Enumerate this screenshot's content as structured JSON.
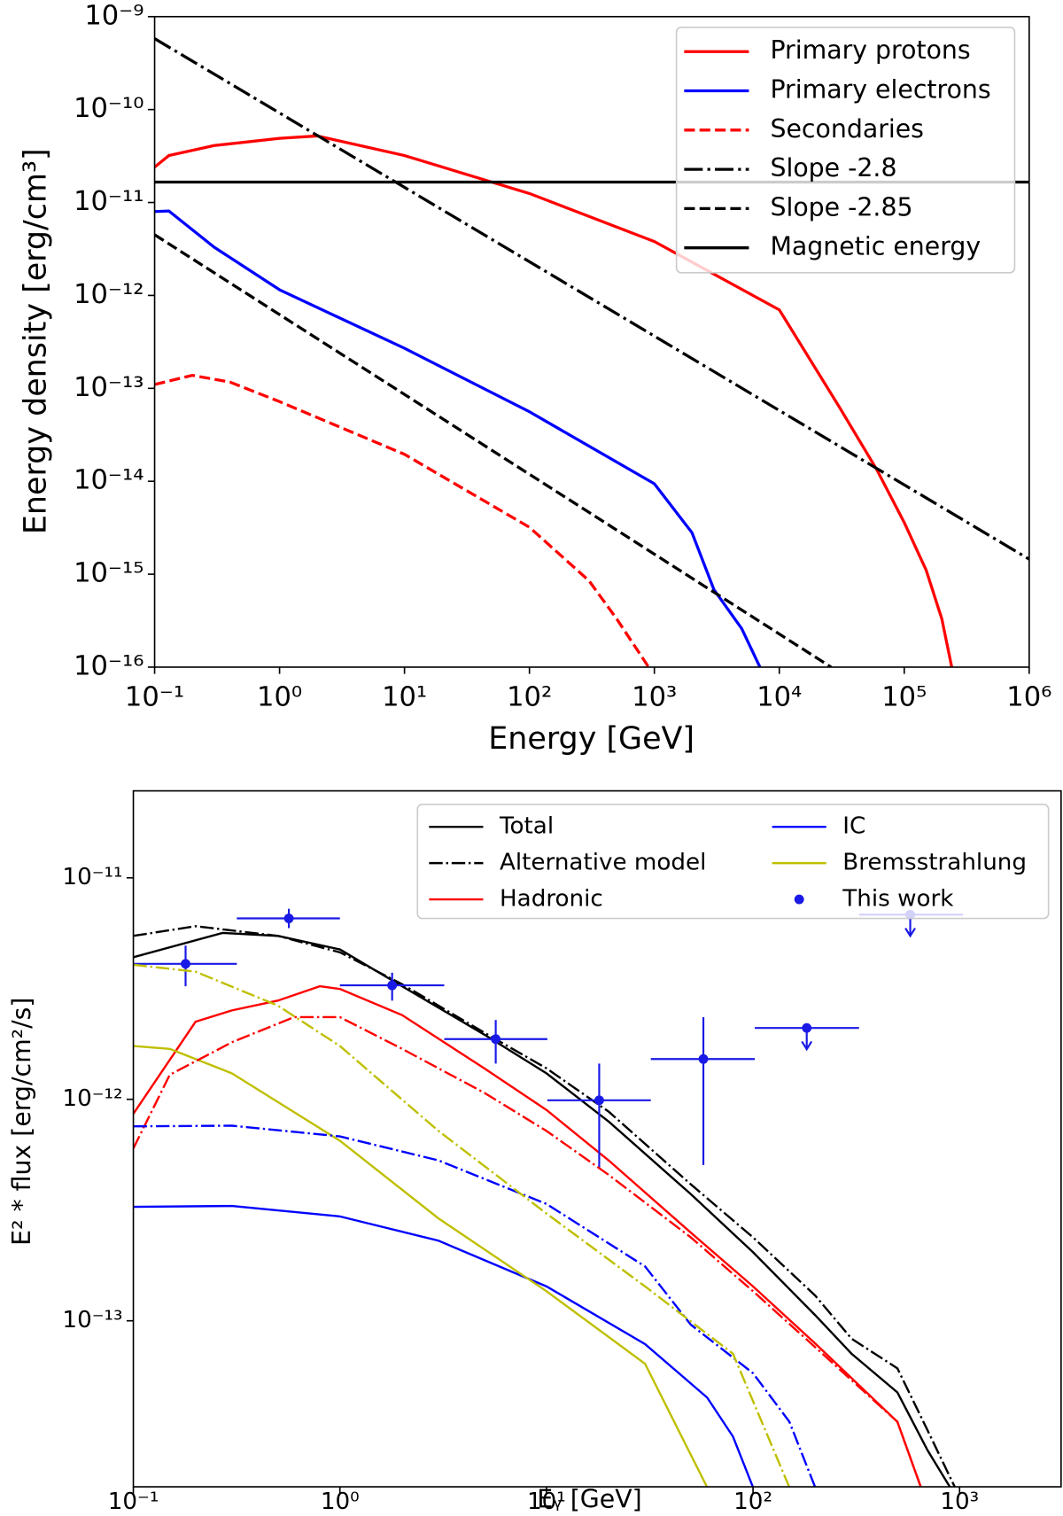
{
  "chart_data": [
    {
      "type": "line",
      "xlabel": "Energy [GeV]",
      "ylabel": "Energy density [erg/cm³]",
      "log_x": true,
      "log_y": true,
      "xlim": [
        0.1,
        1000000
      ],
      "ylim": [
        1e-16,
        1e-09
      ],
      "xticks": [
        {
          "value": 0.1,
          "label": "10⁻¹"
        },
        {
          "value": 1,
          "label": "10⁰"
        },
        {
          "value": 10,
          "label": "10¹"
        },
        {
          "value": 100,
          "label": "10²"
        },
        {
          "value": 1000,
          "label": "10³"
        },
        {
          "value": 10000,
          "label": "10⁴"
        },
        {
          "value": 100000,
          "label": "10⁵"
        },
        {
          "value": 1000000,
          "label": "10⁶"
        }
      ],
      "yticks": [
        {
          "value": 1e-16,
          "label": "10⁻¹⁶"
        },
        {
          "value": 1e-15,
          "label": "10⁻¹⁵"
        },
        {
          "value": 1e-14,
          "label": "10⁻¹⁴"
        },
        {
          "value": 1e-13,
          "label": "10⁻¹³"
        },
        {
          "value": 1e-12,
          "label": "10⁻¹²"
        },
        {
          "value": 1e-11,
          "label": "10⁻¹¹"
        },
        {
          "value": 1e-10,
          "label": "10⁻¹⁰"
        },
        {
          "value": 1e-09,
          "label": "10⁻⁹"
        }
      ],
      "legend": "upper right",
      "legend_columns": 1,
      "series": [
        {
          "name": "Primary protons",
          "color": "#ff0000",
          "linestyle": "solid",
          "x": [
            0.1,
            0.13,
            0.3,
            1,
            2,
            10,
            100,
            1000,
            10000,
            30000,
            60000,
            100000,
            150000,
            200000,
            240000
          ],
          "values": [
            2.4e-11,
            3.2e-11,
            4.1e-11,
            4.9e-11,
            5.2e-11,
            3.2e-11,
            1.25e-11,
            3.8e-12,
            7e-13,
            6.4e-14,
            1.35e-14,
            3.6e-15,
            1.1e-15,
            3.3e-16,
            1e-16
          ]
        },
        {
          "name": "Primary electrons",
          "color": "#0000ff",
          "linestyle": "solid",
          "x": [
            0.1,
            0.13,
            0.3,
            1,
            10,
            100,
            1000,
            2000,
            3000,
            5000,
            7000
          ],
          "values": [
            8e-12,
            8.1e-12,
            3.3e-12,
            1.15e-12,
            2.7e-13,
            5.6e-14,
            9.4e-15,
            2.8e-15,
            6.8e-16,
            2.6e-16,
            1e-16
          ]
        },
        {
          "name": "Secondaries",
          "color": "#ff0000",
          "linestyle": "dashed",
          "x": [
            0.1,
            0.2,
            0.4,
            1,
            10,
            100,
            300,
            500,
            900
          ],
          "values": [
            1.1e-13,
            1.38e-13,
            1.17e-13,
            7.2e-14,
            1.95e-14,
            3.2e-15,
            8.5e-16,
            3.3e-16,
            1e-16
          ]
        },
        {
          "name": "Slope -2.8",
          "color": "#000000",
          "linestyle": "dashdot",
          "x": [
            0.1,
            1000000
          ],
          "values": [
            5.8e-10,
            1.45e-15
          ]
        },
        {
          "name": "Slope -2.85",
          "color": "#000000",
          "linestyle": "dashed",
          "x": [
            0.1,
            26000
          ],
          "values": [
            4.5e-12,
            1e-16
          ]
        },
        {
          "name": "Magnetic energy",
          "color": "#000000",
          "linestyle": "solid",
          "x": [
            0.1,
            1000000
          ],
          "values": [
            1.66e-11,
            1.66e-11
          ]
        }
      ]
    },
    {
      "type": "line",
      "xlabel": "Eᵧ [GeV]",
      "ylabel": "E² * flux [erg/cm²/s]",
      "log_x": true,
      "log_y": true,
      "xlim": [
        0.1,
        3100
      ],
      "ylim": [
        1.78e-14,
        2.47e-11
      ],
      "xticks": [
        {
          "value": 0.1,
          "label": "10⁻¹"
        },
        {
          "value": 1,
          "label": "10⁰"
        },
        {
          "value": 10,
          "label": "10¹"
        },
        {
          "value": 100,
          "label": "10²"
        },
        {
          "value": 1000,
          "label": "10³"
        }
      ],
      "yticks": [
        {
          "value": 1e-13,
          "label": "10⁻¹³"
        },
        {
          "value": 1e-12,
          "label": "10⁻¹²"
        },
        {
          "value": 1e-11,
          "label": "10⁻¹¹"
        }
      ],
      "legend": "upper right",
      "legend_columns": 2,
      "series": [
        {
          "name": "Total",
          "color": "#000000",
          "linestyle": "solid",
          "x": [
            0.1,
            0.27,
            0.5,
            1,
            2,
            5,
            10,
            20,
            50,
            100,
            200,
            300,
            500,
            700,
            900
          ],
          "values": [
            4.38e-12,
            5.64e-12,
            5.47e-12,
            4.75e-12,
            3.24e-12,
            1.96e-12,
            1.31e-12,
            7.94e-13,
            3.73e-13,
            2.04e-13,
            1.06e-13,
            7.1e-14,
            4.75e-14,
            2.6e-14,
            1.77e-14
          ]
        },
        {
          "name": "Alternative model",
          "color": "#000000",
          "linestyle": "dashdot",
          "x": [
            0.1,
            0.2,
            0.5,
            1,
            2,
            5,
            10,
            20,
            50,
            100,
            200,
            300,
            500,
            700,
            950
          ],
          "values": [
            5.47e-12,
            6.05e-12,
            5.47e-12,
            4.61e-12,
            3.31e-12,
            2e-12,
            1.38e-12,
            8.8e-13,
            4.13e-13,
            2.38e-13,
            1.3e-13,
            8.3e-14,
            6.1e-14,
            3.2e-14,
            1.77e-14
          ]
        },
        {
          "name": "Hadronic",
          "color": "#ff0000",
          "linestyle": "solid",
          "x": [
            0.1,
            0.2,
            0.3,
            0.5,
            0.8,
            1,
            2,
            5,
            10,
            20,
            50,
            100,
            200,
            500,
            650
          ],
          "values": [
            8.6e-13,
            2.24e-12,
            2.52e-12,
            2.79e-12,
            3.24e-12,
            3.15e-12,
            2.4e-12,
            1.38e-12,
            8.95e-13,
            5.3e-13,
            2.5e-13,
            1.43e-13,
            7.9e-14,
            3.5e-14,
            1.77e-14
          ]
        },
        {
          "name": "IC",
          "color": "#0000ff",
          "linestyle": "solid",
          "x": [
            0.1,
            0.3,
            1,
            3,
            10,
            30,
            60,
            80,
            100
          ],
          "values": [
            3.27e-13,
            3.3e-13,
            2.96e-13,
            2.3e-13,
            1.43e-13,
            7.85e-14,
            4.5e-14,
            3e-14,
            1.77e-14
          ]
        },
        {
          "name": "Bremsstrahlung",
          "color": "#bfbf00",
          "linestyle": "solid",
          "x": [
            0.1,
            0.15,
            0.3,
            1,
            3,
            10,
            30,
            60
          ],
          "values": [
            1.74e-12,
            1.69e-12,
            1.31e-12,
            6.5e-13,
            2.9e-13,
            1.36e-13,
            6.4e-14,
            1.77e-14
          ]
        },
        {
          "name": "This work",
          "color": "#1a1ae6",
          "linestyle": "none",
          "marker": "o",
          "x": [
            0.179,
            0.566,
            1.79,
            5.68,
            18,
            57.5,
            182,
            577
          ],
          "values": [
            4.09e-12,
            6.56e-12,
            3.27e-12,
            1.87e-12,
            9.9e-13,
            1.52e-12,
            2.1e-12,
            6.82e-12
          ],
          "x_lo": [
            0.1,
            0.317,
            1.0,
            3.2,
            10.1,
            32,
            102,
            326
          ],
          "x_hi": [
            0.317,
            1.0,
            3.2,
            10.1,
            32,
            102,
            326,
            1040
          ],
          "y_lo": [
            3.24e-12,
            5.93e-12,
            2.79e-12,
            1.45e-12,
            4.9e-13,
            5.05e-13,
            null,
            null
          ],
          "y_hi": [
            4.94e-12,
            7.25e-12,
            3.73e-12,
            2.28e-12,
            1.45e-12,
            2.35e-12,
            null,
            null
          ],
          "upper_limit": [
            false,
            false,
            false,
            false,
            false,
            false,
            true,
            true
          ]
        },
        {
          "color": "#ff0000",
          "linestyle": "dashdot",
          "x": [
            0.1,
            0.15,
            0.3,
            0.6,
            1,
            2,
            5,
            10,
            20,
            50,
            100,
            200,
            500,
            650
          ],
          "values": [
            6e-13,
            1.29e-12,
            1.81e-12,
            2.35e-12,
            2.35e-12,
            1.69e-12,
            1.07e-12,
            7.2e-13,
            4.56e-13,
            2.38e-13,
            1.36e-13,
            7.6e-14,
            3.5e-14,
            1.77e-14
          ]
        },
        {
          "color": "#0000ff",
          "linestyle": "dashdot",
          "x": [
            0.1,
            0.3,
            1,
            3,
            10,
            30,
            50,
            100,
            150,
            200
          ],
          "values": [
            7.55e-13,
            7.6e-13,
            6.8e-13,
            5.3e-13,
            3.37e-13,
            1.76e-13,
            9.6e-14,
            5.8e-14,
            3.5e-14,
            1.77e-14
          ]
        },
        {
          "color": "#bfbf00",
          "linestyle": "dashdot",
          "x": [
            0.1,
            0.2,
            0.5,
            1,
            3,
            10,
            30,
            80,
            150
          ],
          "values": [
            4.05e-12,
            3.77e-12,
            2.65e-12,
            1.74e-12,
            7.2e-13,
            3.05e-13,
            1.43e-13,
            7.1e-14,
            1.77e-14
          ]
        }
      ]
    }
  ]
}
